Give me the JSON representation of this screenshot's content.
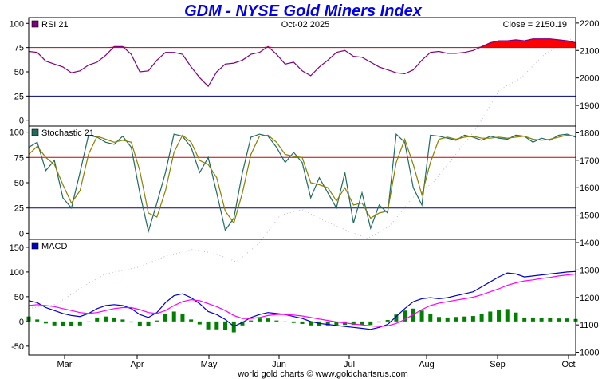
{
  "chart_data": {
    "type": "line",
    "title": "GDM - NYSE Gold Miners Index",
    "date_label": "Oct-02  2025",
    "close_label": "Close = 2150.19",
    "footer": "world gold charts © www.goldchartsrus.com",
    "months": [
      "Mar",
      "Apr",
      "May",
      "Jun",
      "Jul",
      "Aug",
      "Sep",
      "Oct"
    ],
    "price_axis": {
      "range": [
        990,
        2220
      ],
      "ticks": [
        1000,
        1100,
        1200,
        1300,
        1400,
        1500,
        1600,
        1700,
        1800,
        1900,
        2000,
        2100,
        2200
      ]
    },
    "price_series": {
      "t": [
        0,
        0.05,
        0.1,
        0.14,
        0.2,
        0.25,
        0.3,
        0.34,
        0.38,
        0.42,
        0.46,
        0.5,
        0.54,
        0.58,
        0.62,
        0.66,
        0.7,
        0.74,
        0.78,
        0.82,
        0.86,
        0.9,
        0.94,
        0.97,
        1.0
      ],
      "close": [
        1160,
        1175,
        1240,
        1285,
        1310,
        1350,
        1375,
        1360,
        1330,
        1395,
        1500,
        1520,
        1480,
        1445,
        1415,
        1460,
        1560,
        1620,
        1720,
        1820,
        1955,
        2000,
        2080,
        2120,
        2150
      ]
    },
    "panels": [
      {
        "name": "RSI 21",
        "range": [
          -6,
          106
        ],
        "ticks": [
          0,
          25,
          50,
          75,
          100
        ],
        "levels": [
          {
            "value": 75,
            "color": "#cc0000"
          },
          {
            "value": 25,
            "color": "#000080"
          }
        ],
        "series": [
          {
            "name": "RSI 21",
            "color": "#800080",
            "values": [
              71,
              70,
              61,
              58,
              55,
              49,
              51,
              57,
              60,
              67,
              76,
              76,
              68,
              50,
              51,
              62,
              70,
              70,
              68,
              55,
              44,
              35,
              50,
              58,
              59,
              62,
              68,
              70,
              76,
              68,
              58,
              60,
              51,
              46,
              55,
              62,
              70,
              72,
              66,
              65,
              60,
              55,
              52,
              49,
              48,
              52,
              62,
              70,
              71,
              69,
              69,
              70,
              72,
              76,
              80,
              82,
              82,
              83,
              82,
              84,
              84,
              84,
              83,
              82,
              80
            ]
          }
        ]
      },
      {
        "name": "Stochastic 21",
        "range": [
          -6,
          106
        ],
        "ticks": [
          0,
          25,
          50,
          75,
          100
        ],
        "levels": [
          {
            "value": 75,
            "color": "#cc0000"
          },
          {
            "value": 25,
            "color": "#000080"
          }
        ],
        "series": [
          {
            "name": "Stochastic 21",
            "color": "#1f6b5f",
            "values": [
              85,
              90,
              62,
              72,
              35,
              25,
              60,
              97,
              95,
              90,
              88,
              96,
              85,
              40,
              2,
              30,
              60,
              98,
              96,
              85,
              60,
              75,
              40,
              3,
              15,
              60,
              95,
              98,
              96,
              85,
              70,
              80,
              70,
              35,
              55,
              40,
              25,
              60,
              10,
              40,
              5,
              28,
              20,
              98,
              90,
              45,
              28,
              97,
              96,
              94,
              92,
              97,
              95,
              92,
              96,
              94,
              93,
              97,
              96,
              90,
              94,
              92,
              97,
              98,
              95
            ]
          },
          {
            "name": "signal",
            "color": "#8a8000",
            "values": [
              78,
              86,
              75,
              68,
              48,
              30,
              42,
              78,
              96,
              93,
              90,
              92,
              90,
              62,
              20,
              16,
              42,
              80,
              97,
              90,
              72,
              68,
              55,
              22,
              10,
              40,
              78,
              96,
              97,
              90,
              78,
              76,
              75,
              50,
              48,
              45,
              32,
              45,
              28,
              30,
              15,
              20,
              22,
              70,
              93,
              68,
              38,
              70,
              93,
              95,
              93,
              95,
              96,
              94,
              94,
              95,
              94,
              95,
              96,
              93,
              92,
              93,
              95,
              97,
              96
            ]
          }
        ]
      },
      {
        "name": "MACD",
        "range": [
          -68,
          166
        ],
        "ticks": [
          -50,
          0,
          50,
          100,
          150
        ],
        "levels": [],
        "series": [
          {
            "name": "MACD",
            "color": "#0000cc",
            "values": [
              42,
              38,
              28,
              22,
              16,
              12,
              10,
              16,
              26,
              32,
              34,
              32,
              26,
              14,
              8,
              18,
              38,
              52,
              56,
              48,
              36,
              20,
              14,
              4,
              -10,
              -2,
              8,
              14,
              18,
              16,
              14,
              10,
              6,
              0,
              -4,
              -6,
              -8,
              -10,
              -12,
              -14,
              -16,
              -12,
              -6,
              10,
              26,
              40,
              46,
              48,
              46,
              48,
              52,
              56,
              60,
              70,
              80,
              90,
              98,
              96,
              90,
              92,
              94,
              96,
              98,
              100,
              101
            ]
          },
          {
            "name": "signal",
            "color": "#ff00ff",
            "values": [
              32,
              34,
              32,
              30,
              26,
              22,
              18,
              16,
              18,
              22,
              26,
              28,
              28,
              24,
              18,
              16,
              22,
              32,
              40,
              44,
              42,
              36,
              30,
              22,
              12,
              6,
              6,
              8,
              12,
              14,
              14,
              13,
              11,
              8,
              5,
              2,
              -1,
              -3,
              -5,
              -7,
              -9,
              -10,
              -9,
              -4,
              4,
              14,
              24,
              32,
              37,
              40,
              43,
              46,
              49,
              54,
              60,
              66,
              73,
              78,
              82,
              84,
              87,
              89,
              92,
              94,
              96
            ]
          }
        ],
        "histogram": {
          "pos_color": "#008000",
          "neg_color": "#cc0000",
          "values": [
            10,
            4,
            -4,
            -8,
            -10,
            -10,
            -8,
            0,
            8,
            10,
            8,
            4,
            -2,
            -10,
            -10,
            2,
            16,
            20,
            16,
            4,
            -6,
            -16,
            -16,
            -18,
            -22,
            -8,
            2,
            6,
            6,
            2,
            0,
            -3,
            -5,
            -8,
            -9,
            -8,
            -7,
            -7,
            -7,
            -7,
            -7,
            -2,
            3,
            14,
            22,
            26,
            22,
            16,
            9,
            8,
            9,
            10,
            11,
            16,
            20,
            24,
            25,
            18,
            8,
            8,
            7,
            7,
            6,
            6,
            5
          ]
        }
      }
    ]
  }
}
